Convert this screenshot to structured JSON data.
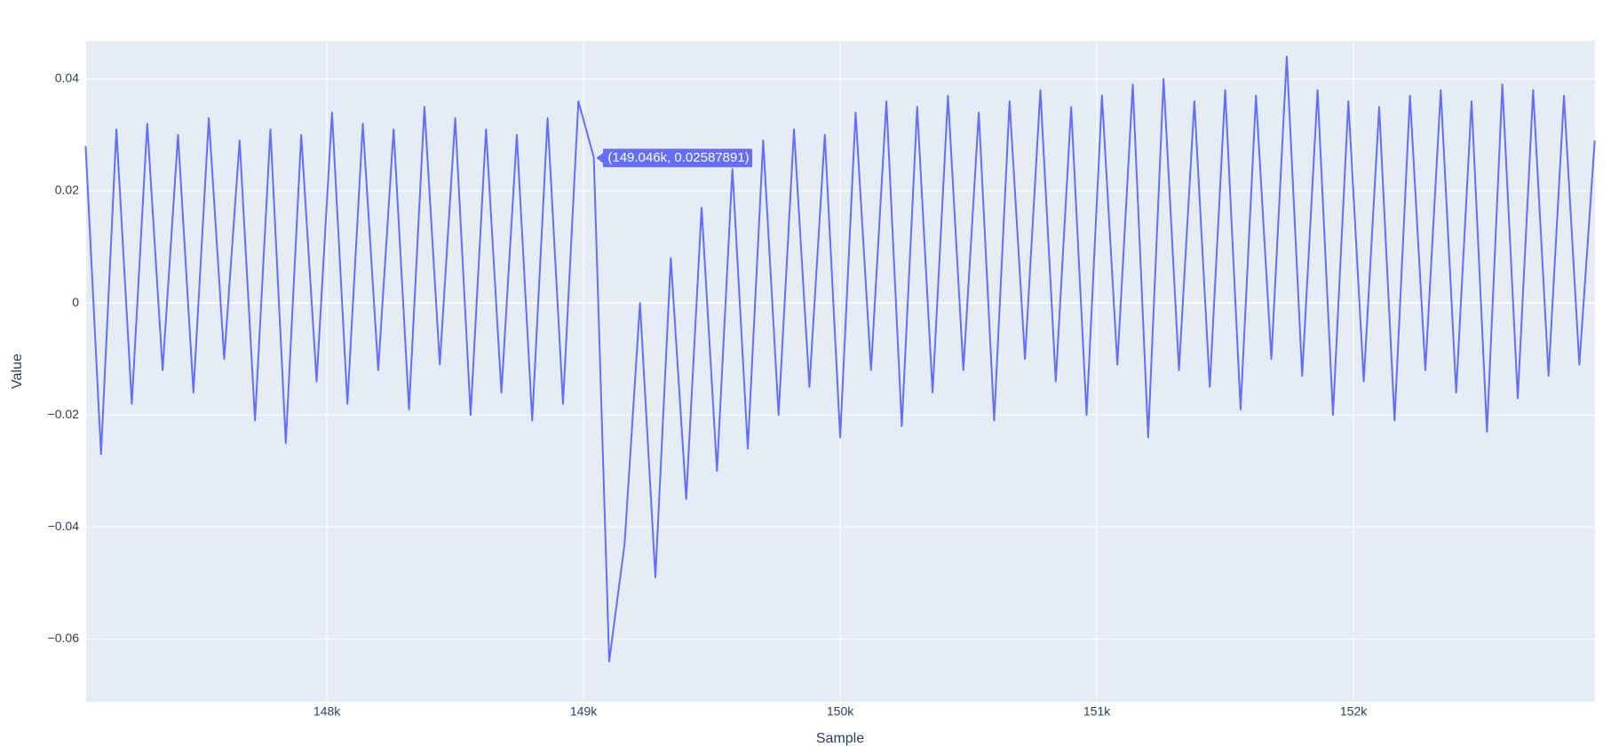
{
  "chart_data": {
    "type": "line",
    "x_label": "Sample",
    "y_label": "Value",
    "color": "#636efa",
    "grid": true,
    "xlim": [
      147062,
      152941
    ],
    "ylim": [
      -0.0712,
      0.0468
    ],
    "xticks": [
      {
        "value": 148000,
        "label": "148k"
      },
      {
        "value": 149000,
        "label": "149k"
      },
      {
        "value": 150000,
        "label": "150k"
      },
      {
        "value": 151000,
        "label": "151k"
      },
      {
        "value": 152000,
        "label": "152k"
      }
    ],
    "yticks": [
      0.04,
      0.02,
      0,
      {
        "value": -0.02,
        "label": "−0.02"
      },
      {
        "value": -0.04,
        "label": "−0.04"
      },
      {
        "value": -0.06,
        "label": "−0.06"
      }
    ],
    "x": [
      147060,
      147120,
      147180,
      147240,
      147300,
      147360,
      147420,
      147480,
      147540,
      147600,
      147660,
      147720,
      147780,
      147840,
      147900,
      147960,
      148020,
      148080,
      148140,
      148200,
      148260,
      148320,
      148380,
      148440,
      148500,
      148560,
      148620,
      148680,
      148740,
      148800,
      148860,
      148920,
      148980,
      149040,
      149100,
      149160,
      149220,
      149280,
      149340,
      149400,
      149460,
      149520,
      149580,
      149640,
      149700,
      149760,
      149820,
      149880,
      149940,
      150000,
      150060,
      150120,
      150180,
      150240,
      150300,
      150360,
      150420,
      150480,
      150540,
      150600,
      150660,
      150720,
      150780,
      150840,
      150900,
      150960,
      151020,
      151080,
      151140,
      151200,
      151260,
      151320,
      151380,
      151440,
      151500,
      151560,
      151620,
      151680,
      151740,
      151800,
      151860,
      151920,
      151980,
      152040,
      152100,
      152160,
      152220,
      152280,
      152340,
      152400,
      152460,
      152520,
      152580,
      152640,
      152700,
      152760,
      152820,
      152880,
      152940
    ],
    "values": [
      0.028,
      -0.027,
      0.031,
      -0.018,
      0.032,
      -0.012,
      0.03,
      -0.016,
      0.033,
      -0.01,
      0.029,
      -0.021,
      0.031,
      -0.025,
      0.03,
      -0.014,
      0.034,
      -0.018,
      0.032,
      -0.012,
      0.031,
      -0.019,
      0.035,
      -0.011,
      0.033,
      -0.02,
      0.031,
      -0.016,
      0.03,
      -0.021,
      0.033,
      -0.018,
      0.036,
      0.026,
      -0.064,
      -0.043,
      0.0,
      -0.049,
      0.008,
      -0.035,
      0.017,
      -0.03,
      0.024,
      -0.026,
      0.029,
      -0.02,
      0.031,
      -0.015,
      0.03,
      -0.024,
      0.034,
      -0.012,
      0.036,
      -0.022,
      0.035,
      -0.016,
      0.037,
      -0.012,
      0.034,
      -0.021,
      0.036,
      -0.01,
      0.038,
      -0.014,
      0.035,
      -0.02,
      0.037,
      -0.011,
      0.039,
      -0.024,
      0.04,
      -0.012,
      0.036,
      -0.015,
      0.038,
      -0.019,
      0.037,
      -0.01,
      0.044,
      -0.013,
      0.038,
      -0.02,
      0.036,
      -0.014,
      0.035,
      -0.021,
      0.037,
      -0.012,
      0.038,
      -0.016,
      0.036,
      -0.023,
      0.039,
      -0.017,
      0.038,
      -0.013,
      0.037,
      -0.011,
      0.029
    ],
    "hover": {
      "x": 149046,
      "y": 0.02587891,
      "label": "(149.046k, 0.02587891)"
    }
  }
}
